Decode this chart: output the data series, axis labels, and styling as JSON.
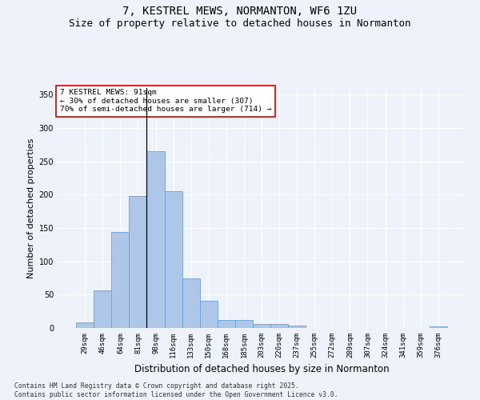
{
  "title_line1": "7, KESTREL MEWS, NORMANTON, WF6 1ZU",
  "title_line2": "Size of property relative to detached houses in Normanton",
  "xlabel": "Distribution of detached houses by size in Normanton",
  "ylabel": "Number of detached properties",
  "bar_labels": [
    "29sqm",
    "46sqm",
    "64sqm",
    "81sqm",
    "98sqm",
    "116sqm",
    "133sqm",
    "150sqm",
    "168sqm",
    "185sqm",
    "203sqm",
    "220sqm",
    "237sqm",
    "255sqm",
    "272sqm",
    "289sqm",
    "307sqm",
    "324sqm",
    "341sqm",
    "359sqm",
    "376sqm"
  ],
  "bar_values": [
    8,
    57,
    144,
    198,
    265,
    205,
    75,
    41,
    12,
    12,
    6,
    6,
    4,
    0,
    0,
    0,
    0,
    0,
    0,
    0,
    2
  ],
  "bar_color": "#aec6e8",
  "bar_edge_color": "#6a9fd4",
  "background_color": "#eef2fb",
  "annotation_text": "7 KESTREL MEWS: 91sqm\n← 30% of detached houses are smaller (307)\n70% of semi-detached houses are larger (714) →",
  "annotation_box_color": "#ffffff",
  "annotation_box_edge": "#cc0000",
  "property_line_x": 3.5,
  "ylim": [
    0,
    360
  ],
  "yticks": [
    0,
    50,
    100,
    150,
    200,
    250,
    300,
    350
  ],
  "footer_line1": "Contains HM Land Registry data © Crown copyright and database right 2025.",
  "footer_line2": "Contains public sector information licensed under the Open Government Licence v3.0.",
  "title_fontsize": 10,
  "subtitle_fontsize": 9,
  "axis_label_fontsize": 8,
  "tick_fontsize": 6.5,
  "annotation_fontsize": 6.8,
  "footer_fontsize": 5.8
}
